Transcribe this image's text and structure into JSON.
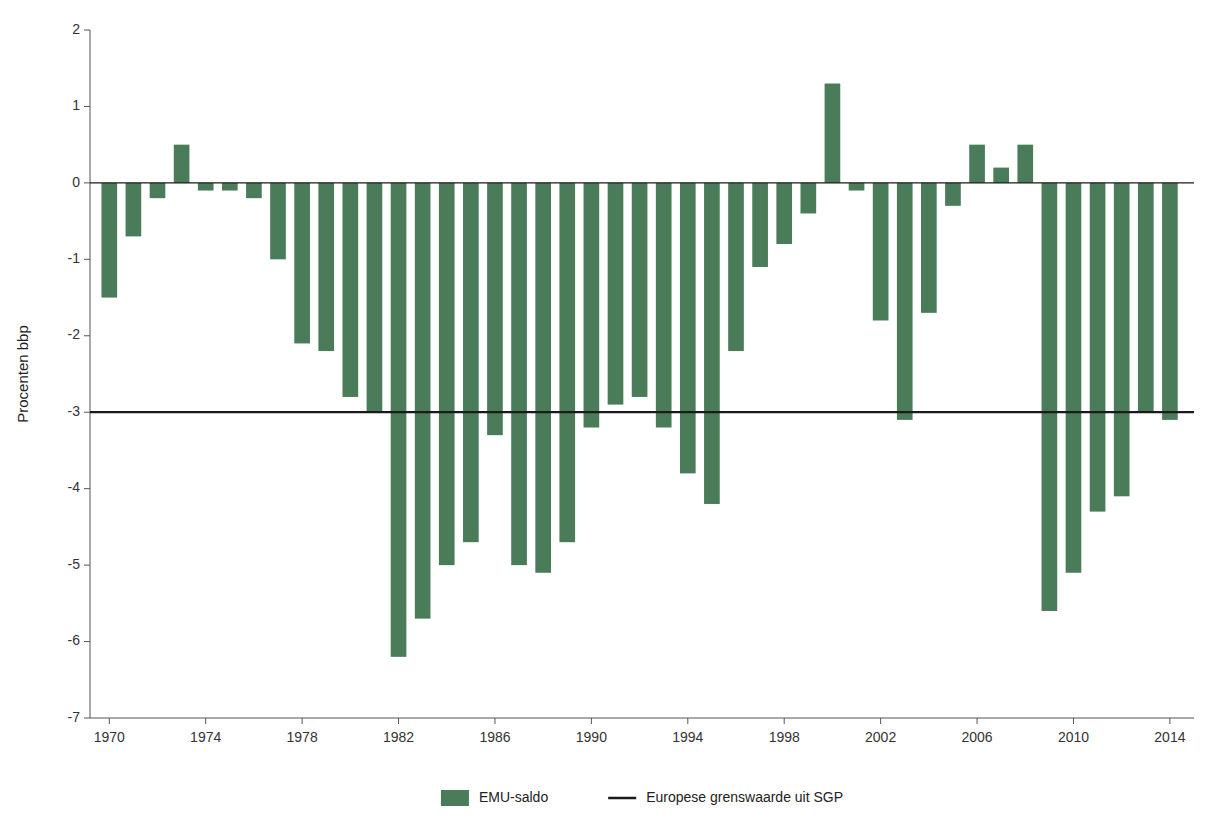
{
  "chart_data": {
    "type": "bar",
    "x": [
      1970,
      1971,
      1972,
      1973,
      1974,
      1975,
      1976,
      1977,
      1978,
      1979,
      1980,
      1981,
      1982,
      1983,
      1984,
      1985,
      1986,
      1987,
      1988,
      1989,
      1990,
      1991,
      1992,
      1993,
      1994,
      1995,
      1996,
      1997,
      1998,
      1999,
      2000,
      2001,
      2002,
      2003,
      2004,
      2005,
      2006,
      2007,
      2008,
      2009,
      2010,
      2011,
      2012,
      2013,
      2014
    ],
    "series": [
      {
        "name": "EMU-saldo",
        "color": "#4a7c59",
        "values": [
          -1.5,
          -0.7,
          -0.2,
          0.5,
          -0.1,
          -0.1,
          -0.2,
          -1.0,
          -2.1,
          -2.2,
          -2.8,
          -3.0,
          -6.2,
          -5.7,
          -5.0,
          -4.7,
          -3.3,
          -5.0,
          -5.1,
          -4.7,
          -3.2,
          -2.9,
          -2.8,
          -3.2,
          -3.8,
          -4.2,
          -2.2,
          -1.1,
          -0.8,
          -0.4,
          1.3,
          -0.1,
          -1.8,
          -3.1,
          -1.7,
          -0.3,
          0.5,
          0.2,
          0.5,
          -5.6,
          -5.1,
          -4.3,
          -4.1,
          -3.0,
          -3.1
        ]
      }
    ],
    "reference_line": {
      "name": "Europese grenswaarde uit SGP",
      "value": -3,
      "color": "#1a1a1a"
    },
    "y_label": "Procenten bbp",
    "xlim": [
      1969.2,
      2015.0
    ],
    "xticks": [
      1970,
      1974,
      1978,
      1982,
      1986,
      1990,
      1994,
      1998,
      2002,
      2006,
      2010,
      2014
    ],
    "ylim": [
      -7,
      2
    ],
    "yticks": [
      -7,
      -6,
      -5,
      -4,
      -3,
      -2,
      -1,
      0,
      1,
      2
    ],
    "grid": false,
    "legend": "bottom"
  }
}
